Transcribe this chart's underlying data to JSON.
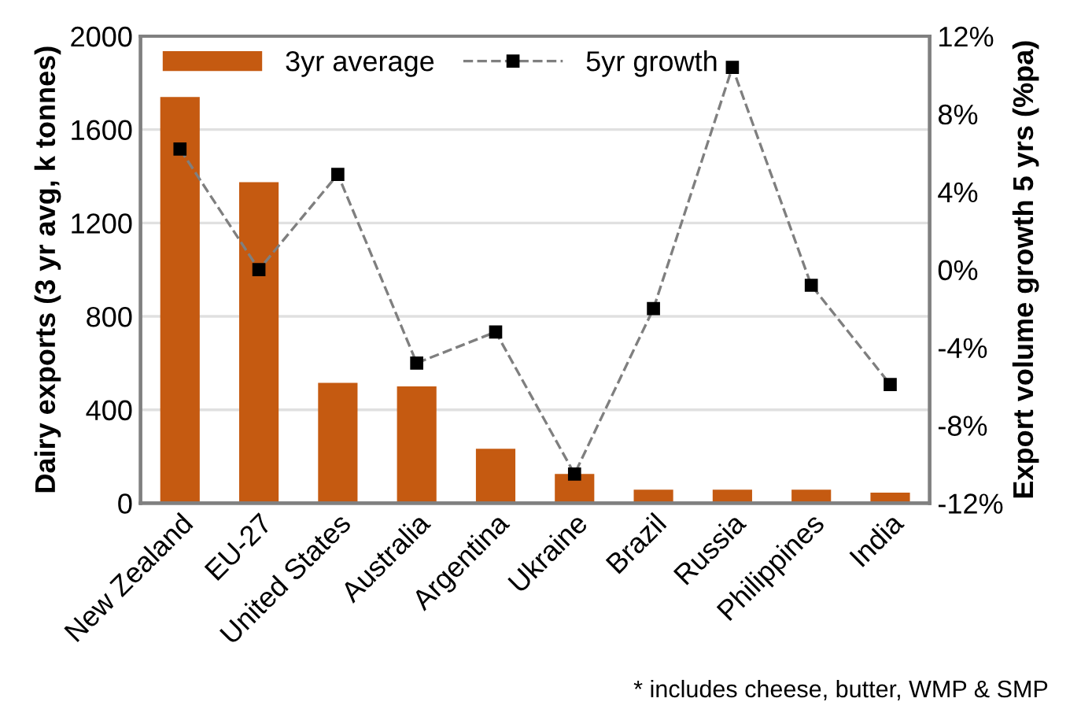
{
  "chart_data": {
    "type": "bar",
    "categories": [
      "New Zealand",
      "EU-27",
      "United States",
      "Australia",
      "Argentina",
      "Ukraine",
      "Brazil",
      "Russia",
      "Philippines",
      "India"
    ],
    "series": [
      {
        "name": "3yr average",
        "color": "#c55a11",
        "values": [
          1740,
          1375,
          515,
          500,
          233,
          125,
          58,
          58,
          58,
          45
        ]
      },
      {
        "name": "5yr growth",
        "type": "line",
        "axis": "y2",
        "color": "#7f7f7f",
        "marker": "square",
        "line_style": "dashed",
        "values": [
          6.2,
          0,
          4.9,
          -4.8,
          -3.2,
          -10.5,
          -2.0,
          10.4,
          -0.8,
          -5.9
        ]
      }
    ],
    "ylabel": "Dairy exports (3 yr avg, k tonnes)",
    "y2label": "Export volume growth 5 yrs (%pa)",
    "ylim": [
      0,
      2000
    ],
    "yticks": [
      0,
      400,
      800,
      1200,
      1600,
      2000
    ],
    "y2lim": [
      -12,
      12
    ],
    "y2ticks": [
      {
        "value": -12,
        "label": "-12%"
      },
      {
        "value": -8,
        "label": "-8%"
      },
      {
        "value": -4,
        "label": "-4%"
      },
      {
        "value": 0,
        "label": "0%"
      },
      {
        "value": 4,
        "label": "4%"
      },
      {
        "value": 8,
        "label": "8%"
      },
      {
        "value": 12,
        "label": "12%"
      }
    ],
    "grid": "y",
    "legend": "top",
    "annotations": [
      "* includes cheese, butter, WMP & SMP"
    ]
  }
}
